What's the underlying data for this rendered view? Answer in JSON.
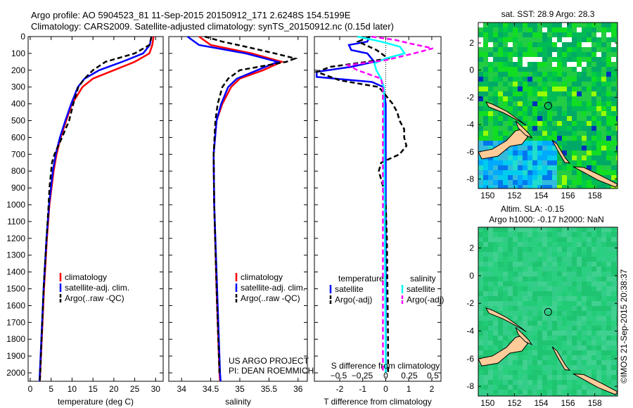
{
  "title": {
    "line1": "Argo profile: AO 5904523_81 11-Sep-2015 20150912_171 2.6248S 154.5199E",
    "line2": "Climatology: CARS2009. Satellite-adjusted climatology: synTS_20150912.nc (0.15d later)"
  },
  "credit": "©IMOS 21-Sep-2015 20:38:37",
  "project": {
    "line1": "US ARGO PROJECT",
    "line2": "PI: DEAN ROEMMICH"
  },
  "colors": {
    "clim": "#ff0000",
    "sat": "#0000ff",
    "argo": "#000000",
    "sal_sat": "#00ffff",
    "sal_argo": "#ff00ff",
    "land": "#ffcc99"
  },
  "chart_data": [
    {
      "type": "line",
      "xlabel": "temperature (deg C)",
      "ylabel": "",
      "xlim": [
        -0.5,
        31.8
      ],
      "ylim": [
        2050,
        0
      ],
      "xticks": [
        0,
        5,
        10,
        15,
        20,
        25,
        30
      ],
      "yticks": [
        0,
        100,
        200,
        300,
        400,
        500,
        600,
        700,
        800,
        900,
        1000,
        1100,
        1200,
        1300,
        1400,
        1500,
        1600,
        1700,
        1800,
        1900,
        2000
      ],
      "legend": [
        "climatology",
        "satellite-adj. clim.",
        "Argo(..raw -QC)"
      ],
      "series": [
        {
          "name": "climatology",
          "depth": [
            0,
            50,
            100,
            150,
            200,
            250,
            300,
            400,
            500,
            600,
            700,
            800,
            1000,
            1200,
            1500,
            2000,
            2050
          ],
          "values": [
            29.5,
            29.2,
            28.5,
            25,
            20,
            15,
            12.5,
            10,
            8.6,
            7.3,
            6.3,
            5.6,
            4.6,
            4,
            3.3,
            2.4,
            2.3
          ]
        },
        {
          "name": "satellite-adj. clim.",
          "depth": [
            0,
            50,
            100,
            150,
            200,
            250,
            300,
            400,
            500,
            600,
            700,
            800,
            1000,
            1200,
            1500,
            2000,
            2050
          ],
          "values": [
            29,
            28.6,
            27,
            22,
            16.5,
            13,
            11.4,
            9.8,
            8.4,
            7.1,
            6.1,
            5.4,
            4.5,
            3.9,
            3.2,
            2.3,
            2.2
          ]
        },
        {
          "name": "Argo(..raw -QC)",
          "depth": [
            0,
            50,
            100,
            150,
            200,
            250,
            300,
            400,
            500,
            600,
            700,
            750,
            800,
            900,
            1000,
            1200,
            1500,
            2000,
            2050
          ],
          "values": [
            29,
            28.5,
            25,
            18,
            15,
            13,
            11.5,
            10.3,
            9.3,
            7.6,
            5.8,
            5.2,
            5,
            4.6,
            4.4,
            3.9,
            3.2,
            2.4,
            2.3
          ]
        }
      ]
    },
    {
      "type": "line",
      "xlabel": "salinity",
      "xlim": [
        33.78,
        36.16
      ],
      "ylim": [
        2050,
        0
      ],
      "xticks": [
        34,
        34.5,
        35,
        35.5,
        36
      ],
      "legend": [
        "climatology",
        "satellite-adj. clim.",
        "Argo(..raw -QC)"
      ],
      "series": [
        {
          "name": "climatology",
          "depth": [
            0,
            50,
            100,
            150,
            200,
            250,
            300,
            400,
            500,
            700,
            1000,
            1500,
            2000,
            2050
          ],
          "values": [
            34.3,
            34.5,
            35.2,
            35.72,
            35.4,
            35,
            34.85,
            34.7,
            34.6,
            34.55,
            34.56,
            34.6,
            34.65,
            34.66
          ]
        },
        {
          "name": "satellite-adj. clim.",
          "depth": [
            0,
            50,
            100,
            150,
            200,
            250,
            300,
            400,
            500,
            700,
            1000,
            1500,
            2000,
            2050
          ],
          "values": [
            34.1,
            34.3,
            35.1,
            35.65,
            35.3,
            34.95,
            34.8,
            34.68,
            34.6,
            34.55,
            34.56,
            34.61,
            34.66,
            34.67
          ]
        },
        {
          "name": "Argo(..raw -QC)",
          "depth": [
            0,
            30,
            60,
            100,
            130,
            150,
            200,
            250,
            300,
            400,
            500,
            700,
            1000,
            1500,
            2000
          ],
          "values": [
            34.4,
            34.7,
            35.1,
            35.6,
            35.95,
            35.8,
            35,
            34.8,
            34.7,
            34.62,
            34.58,
            34.55,
            34.56,
            34.6,
            34.65
          ]
        }
      ]
    },
    {
      "type": "line",
      "xlabel": "T difference from climatology",
      "x2label": "S difference from climatology",
      "xlim": [
        -3.1,
        2.4
      ],
      "x2lim": [
        -0.75,
        0.6
      ],
      "ylim": [
        2050,
        0
      ],
      "xticks": [
        -2,
        -1,
        0,
        1,
        2
      ],
      "x2ticks": [
        "-0.5",
        "-0.25",
        "0",
        "0.25",
        "0.5"
      ],
      "legend": {
        "temperature": "temperature",
        "salinity": "salinity",
        "items": [
          "satellite",
          "Argo(-adj)",
          "satellite",
          "Argo(-adj)"
        ]
      },
      "series": [
        {
          "name": "T satellite",
          "axis": "T",
          "depth": [
            0,
            30,
            50,
            80,
            100,
            150,
            180,
            210,
            240,
            270,
            300,
            400,
            2000
          ],
          "values": [
            -0.7,
            -0.8,
            -1.6,
            -1.5,
            -0.8,
            -0.5,
            -1.5,
            -3,
            -3,
            -0.6,
            -0.1,
            0,
            0
          ]
        },
        {
          "name": "T Argo(-adj)",
          "axis": "T",
          "depth": [
            0,
            30,
            80,
            130,
            150,
            180,
            210,
            260,
            300,
            400,
            450,
            500,
            550,
            600,
            650,
            700,
            750,
            800,
            850,
            900,
            1000,
            1200,
            1800,
            2000
          ],
          "values": [
            -0.7,
            -1.2,
            -0.4,
            0.1,
            -0.8,
            -2.4,
            -3,
            -2,
            -0.3,
            0.3,
            0.5,
            0.6,
            0.8,
            0.8,
            0.9,
            0.6,
            -0.2,
            -0.3,
            -0.2,
            -0.1,
            0,
            0.05,
            0.1,
            0.1
          ]
        },
        {
          "name": "S satellite",
          "axis": "S",
          "depth": [
            0,
            30,
            60,
            100,
            130,
            160,
            200,
            250,
            300,
            2000
          ],
          "values": [
            -0.3,
            -0.05,
            0.15,
            0.2,
            0,
            -0.12,
            -0.1,
            -0.05,
            -0.02,
            0
          ]
        },
        {
          "name": "S Argo(-adj)",
          "axis": "S",
          "depth": [
            0,
            20,
            40,
            70,
            100,
            140,
            170,
            200,
            250,
            300,
            2000
          ],
          "values": [
            -0.15,
            0.1,
            0.25,
            0.5,
            0.3,
            0,
            -0.4,
            -0.3,
            -0.05,
            -0.03,
            -0.03
          ]
        }
      ]
    },
    {
      "type": "heatmap",
      "title": "sat. SST: 28.9 Argo: 28.3",
      "xlim": [
        149.3,
        159.7
      ],
      "ylim": [
        -8.7,
        3.5
      ],
      "xticks": [
        150,
        152,
        154,
        156,
        158
      ],
      "yticks": [
        2,
        0,
        -2,
        -4,
        -6,
        -8
      ],
      "argo_position": [
        154.52,
        -2.62
      ]
    },
    {
      "type": "heatmap",
      "title": "Altim. SLA: -0.15",
      "subtitle": "Argo h1000: -0.17 h2000: NaN",
      "xlim": [
        149.3,
        159.7
      ],
      "ylim": [
        -8.7,
        3.5
      ],
      "xticks": [
        150,
        152,
        154,
        156,
        158
      ],
      "yticks": [
        2,
        0,
        -2,
        -4,
        -6,
        -8
      ],
      "argo_position": [
        154.52,
        -2.62
      ]
    }
  ]
}
